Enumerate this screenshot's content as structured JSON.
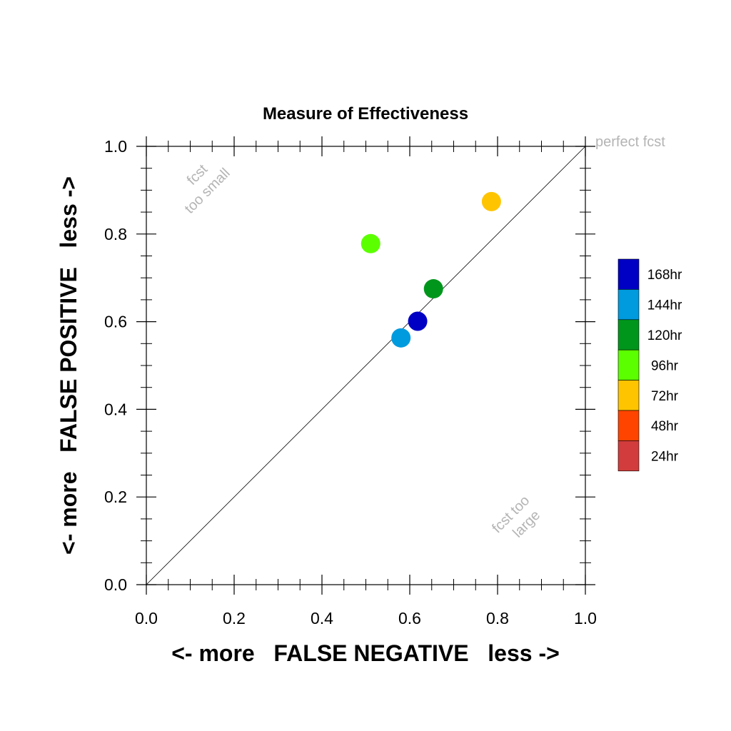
{
  "chart_data": {
    "type": "scatter",
    "title": "Measure of Effectiveness",
    "xlabel": "<- more   FALSE NEGATIVE   less ->",
    "ylabel": "<- more   FALSE POSITIVE   less ->",
    "xlim": [
      0.0,
      1.0
    ],
    "ylim": [
      0.0,
      1.0
    ],
    "xticks": [
      "0.0",
      "0.2",
      "0.4",
      "0.6",
      "0.8",
      "1.0"
    ],
    "yticks": [
      "0.0",
      "0.2",
      "0.4",
      "0.6",
      "0.8",
      "1.0"
    ],
    "grid": false,
    "diagonal_line": true,
    "annotations": {
      "perfect": "perfect fcst",
      "too_small": [
        "fcst",
        "too small"
      ],
      "too_large": [
        "fcst too",
        "large"
      ]
    },
    "legend": {
      "placement": "right",
      "entries": [
        {
          "label": "168hr",
          "color": "#0000c4"
        },
        {
          "label": "144hr",
          "color": "#009ade"
        },
        {
          "label": "120hr",
          "color": "#00961c"
        },
        {
          "label": "96hr",
          "color": "#5cff00"
        },
        {
          "label": "72hr",
          "color": "#ffc400"
        },
        {
          "label": "48hr",
          "color": "#ff4400"
        },
        {
          "label": "24hr",
          "color": "#d23c3c"
        }
      ]
    },
    "points": [
      {
        "series": "72hr",
        "x": 0.786,
        "y": 0.874,
        "color": "#ffc400"
      },
      {
        "series": "96hr",
        "x": 0.511,
        "y": 0.778,
        "color": "#5cff00"
      },
      {
        "series": "120hr",
        "x": 0.654,
        "y": 0.675,
        "color": "#00961c"
      },
      {
        "series": "168hr",
        "x": 0.618,
        "y": 0.601,
        "color": "#0000c4"
      },
      {
        "series": "144hr",
        "x": 0.58,
        "y": 0.563,
        "color": "#009ade"
      }
    ]
  }
}
